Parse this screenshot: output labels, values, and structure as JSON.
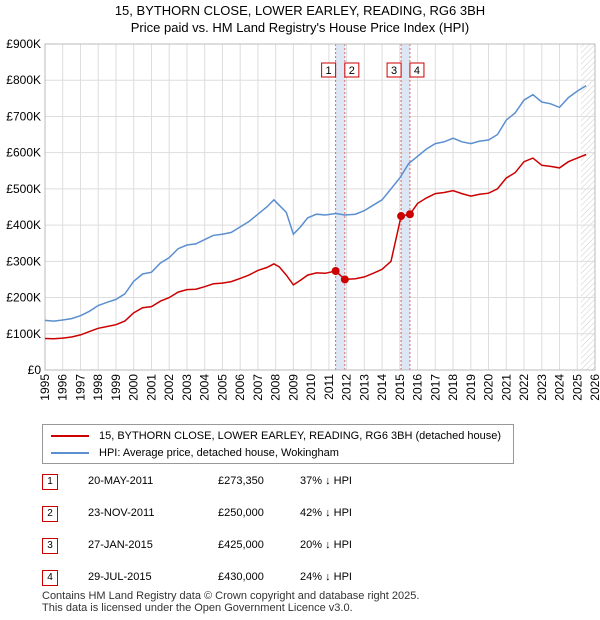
{
  "title_line1": "15, BYTHORN CLOSE, LOWER EARLEY, READING, RG6 3BH",
  "title_line2": "Price paid vs. HM Land Registry's House Price Index (HPI)",
  "colors": {
    "property": "#cc0000",
    "hpi": "#5b8fd0",
    "band": "#dde6f4",
    "vline": "#e06666",
    "grid": "#dddddd"
  },
  "legend": {
    "property_label": "15, BYTHORN CLOSE, LOWER EARLEY, READING, RG6 3BH (detached house)",
    "hpi_label": "HPI: Average price, detached house, Wokingham"
  },
  "transactions": [
    {
      "num": "1",
      "date": "20-MAY-2011",
      "price": "£273,350",
      "pct": "37% ↓ HPI"
    },
    {
      "num": "2",
      "date": "23-NOV-2011",
      "price": "£250,000",
      "pct": "42% ↓ HPI"
    },
    {
      "num": "3",
      "date": "27-JAN-2015",
      "price": "£425,000",
      "pct": "20% ↓ HPI"
    },
    {
      "num": "4",
      "date": "29-JUL-2015",
      "price": "£430,000",
      "pct": "24% ↓ HPI"
    }
  ],
  "footer_line1": "Contains HM Land Registry data © Crown copyright and database right 2025.",
  "footer_line2": "This data is licensed under the Open Government Licence v3.0.",
  "chart_data": {
    "type": "line",
    "title": "15, BYTHORN CLOSE, LOWER EARLEY, READING, RG6 3BH",
    "subtitle": "Price paid vs. HM Land Registry's House Price Index (HPI)",
    "xlabel": "",
    "ylabel": "",
    "xlim": [
      1995,
      2026
    ],
    "ylim": [
      0,
      900000
    ],
    "x_ticks": [
      1995,
      1996,
      1997,
      1998,
      1999,
      2000,
      2001,
      2002,
      2003,
      2004,
      2005,
      2006,
      2007,
      2008,
      2009,
      2010,
      2011,
      2012,
      2013,
      2014,
      2015,
      2016,
      2017,
      2018,
      2019,
      2020,
      2021,
      2022,
      2023,
      2024,
      2025,
      2026
    ],
    "y_ticks": [
      {
        "value": 0,
        "label": "£0"
      },
      {
        "value": 100000,
        "label": "£100K"
      },
      {
        "value": 200000,
        "label": "£200K"
      },
      {
        "value": 300000,
        "label": "£300K"
      },
      {
        "value": 400000,
        "label": "£400K"
      },
      {
        "value": 500000,
        "label": "£500K"
      },
      {
        "value": 600000,
        "label": "£600K"
      },
      {
        "value": 700000,
        "label": "£700K"
      },
      {
        "value": 800000,
        "label": "£800K"
      },
      {
        "value": 900000,
        "label": "£900K"
      }
    ],
    "grid": true,
    "shaded_bands": [
      {
        "from": 2011.38,
        "to": 2011.9
      },
      {
        "from": 2015.07,
        "to": 2015.57
      }
    ],
    "hatched_region_from": 2025.2,
    "series": [
      {
        "name": "HPI: Average price, detached house, Wokingham",
        "x": [
          1995,
          1995.5,
          1996,
          1996.5,
          1997,
          1997.5,
          1998,
          1998.5,
          1999,
          1999.5,
          2000,
          2000.5,
          2001,
          2001.5,
          2002,
          2002.5,
          2003,
          2003.5,
          2004,
          2004.5,
          2005,
          2005.5,
          2006,
          2006.5,
          2007,
          2007.5,
          2007.9,
          2008.2,
          2008.6,
          2009,
          2009.4,
          2009.8,
          2010.3,
          2010.8,
          2011.4,
          2011.9,
          2012.5,
          2013,
          2013.5,
          2014,
          2014.5,
          2015,
          2015.5,
          2016,
          2016.5,
          2017,
          2017.5,
          2018,
          2018.5,
          2019,
          2019.5,
          2020,
          2020.5,
          2021,
          2021.5,
          2022,
          2022.5,
          2023,
          2023.5,
          2024,
          2024.5,
          2025,
          2025.5
        ],
        "values": [
          137000,
          135000,
          138000,
          142000,
          150000,
          162000,
          178000,
          187000,
          195000,
          210000,
          245000,
          265000,
          270000,
          295000,
          310000,
          335000,
          345000,
          348000,
          360000,
          372000,
          375000,
          380000,
          395000,
          410000,
          430000,
          450000,
          470000,
          455000,
          435000,
          375000,
          395000,
          420000,
          430000,
          428000,
          432000,
          428000,
          430000,
          440000,
          455000,
          470000,
          500000,
          530000,
          570000,
          590000,
          610000,
          625000,
          630000,
          640000,
          630000,
          625000,
          632000,
          635000,
          650000,
          690000,
          710000,
          745000,
          760000,
          740000,
          735000,
          725000,
          752000,
          770000,
          785000
        ]
      },
      {
        "name": "15, BYTHORN CLOSE, LOWER EARLEY, READING, RG6 3BH (detached house)",
        "x": [
          1995,
          1995.5,
          1996,
          1996.5,
          1997,
          1997.5,
          1998,
          1998.5,
          1999,
          1999.5,
          2000,
          2000.5,
          2001,
          2001.5,
          2002,
          2002.5,
          2003,
          2003.5,
          2004,
          2004.5,
          2005,
          2005.5,
          2006,
          2006.5,
          2007,
          2007.5,
          2007.9,
          2008.2,
          2008.6,
          2009,
          2009.4,
          2009.8,
          2010.3,
          2010.8,
          2011.38,
          2011.9,
          2012.5,
          2013,
          2013.5,
          2014,
          2014.5,
          2015.07,
          2015.57,
          2016,
          2016.5,
          2017,
          2017.5,
          2018,
          2018.5,
          2019,
          2019.5,
          2020,
          2020.5,
          2021,
          2021.5,
          2022,
          2022.5,
          2023,
          2023.5,
          2024,
          2024.5,
          2025,
          2025.5
        ],
        "values": [
          87000,
          86000,
          88000,
          91000,
          97000,
          106000,
          115000,
          120000,
          125000,
          135000,
          158000,
          172000,
          175000,
          190000,
          200000,
          215000,
          222000,
          223000,
          230000,
          238000,
          240000,
          244000,
          253000,
          262000,
          275000,
          283000,
          293000,
          285000,
          262000,
          235000,
          248000,
          262000,
          268000,
          267000,
          273350,
          250000,
          252000,
          257000,
          267000,
          278000,
          300000,
          425000,
          430000,
          460000,
          475000,
          487000,
          490000,
          495000,
          487000,
          480000,
          485000,
          488000,
          500000,
          530000,
          545000,
          575000,
          585000,
          565000,
          562000,
          558000,
          575000,
          585000,
          595000
        ]
      }
    ],
    "sales": [
      {
        "label": "1",
        "x": 2011.38,
        "value": 273350
      },
      {
        "label": "2",
        "x": 2011.9,
        "value": 250000
      },
      {
        "label": "3",
        "x": 2015.07,
        "value": 425000
      },
      {
        "label": "4",
        "x": 2015.57,
        "value": 430000
      }
    ]
  }
}
